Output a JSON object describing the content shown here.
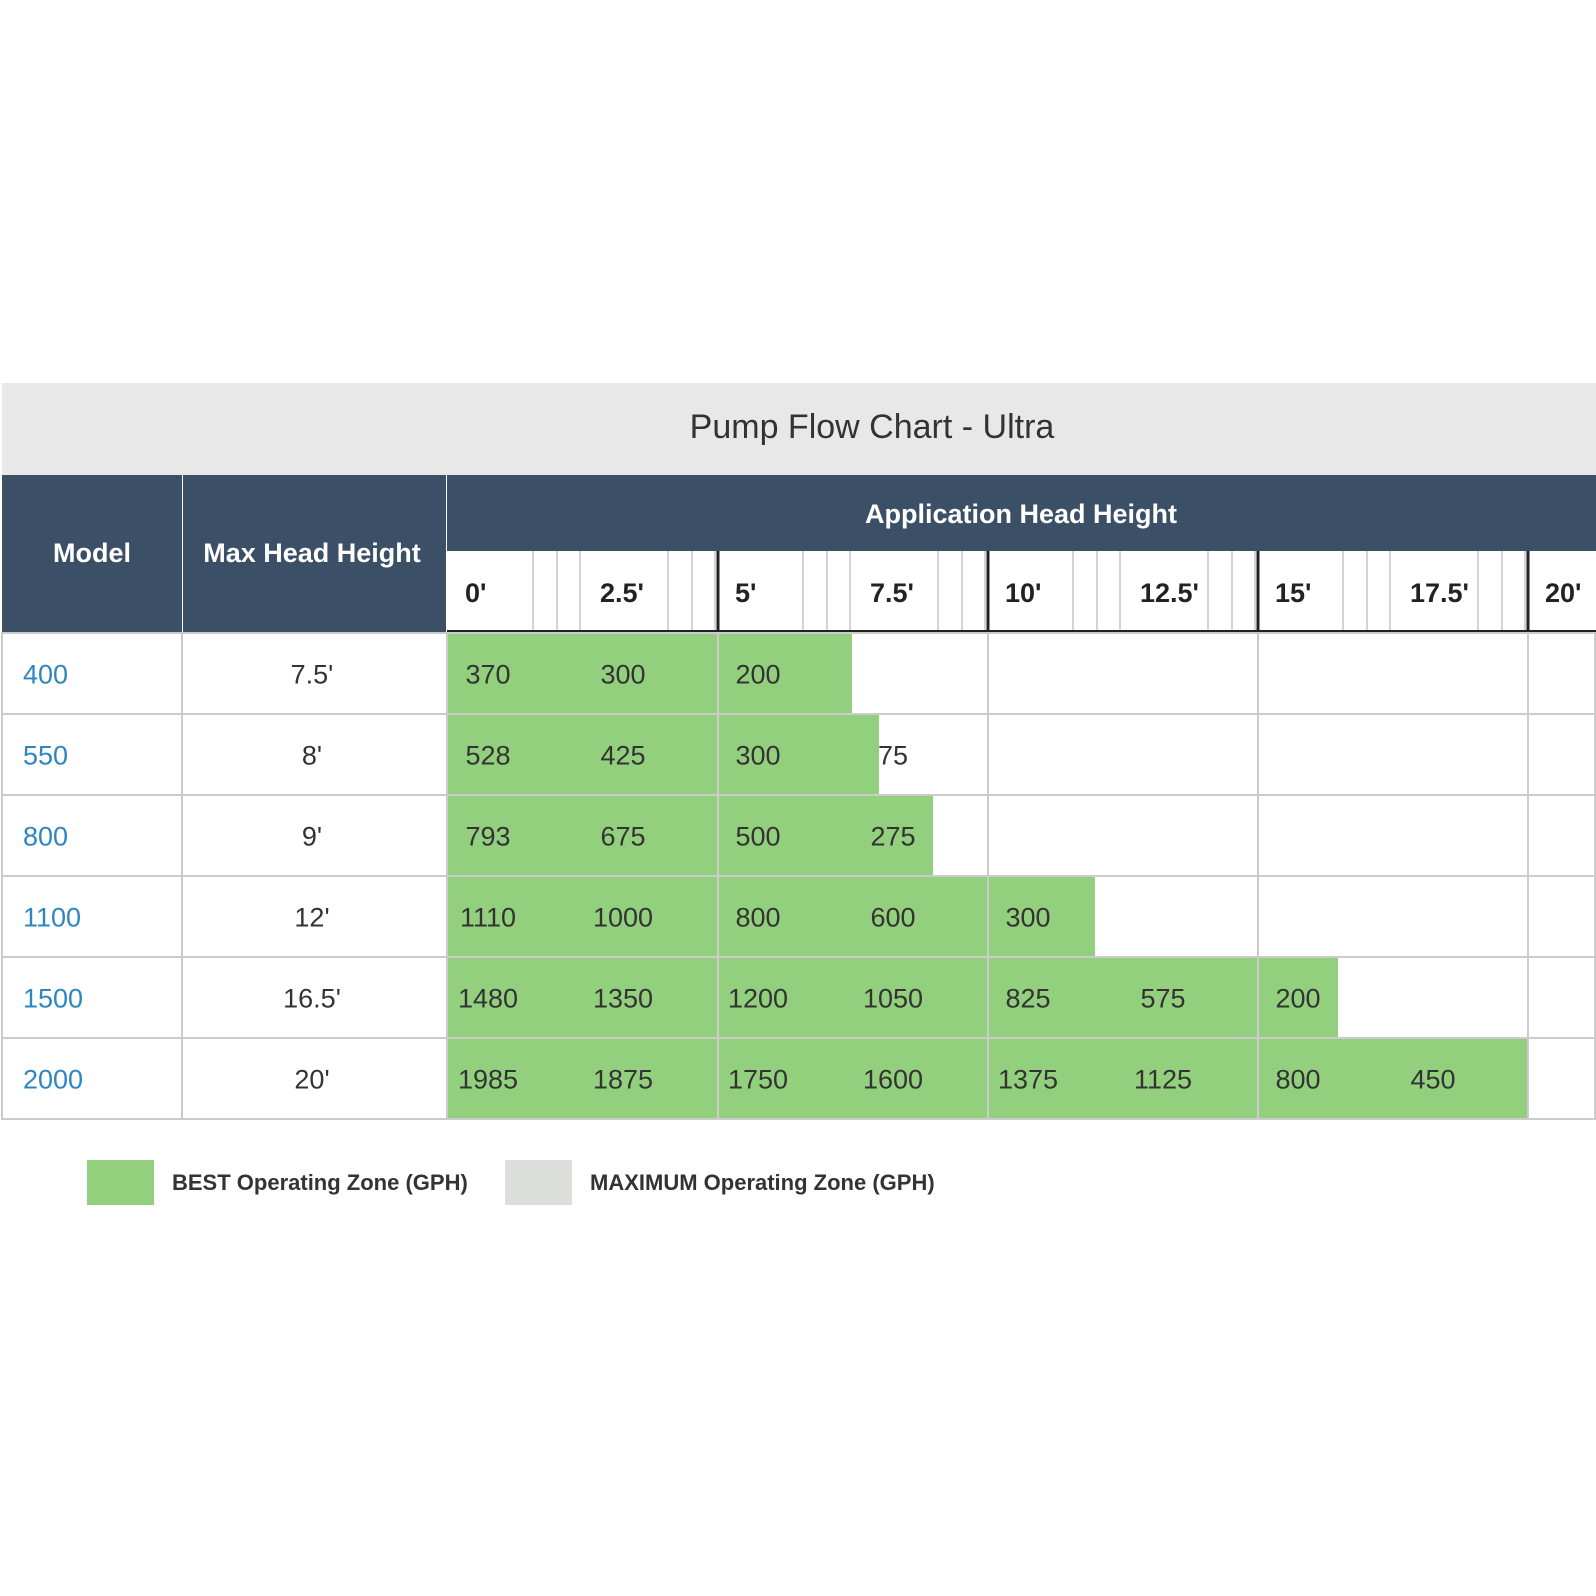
{
  "chart_data": {
    "type": "table",
    "title": "Pump Flow Chart - Ultra",
    "columns": {
      "model": "Model",
      "max_head": "Max Head Height",
      "group": "Application Head Height"
    },
    "head_heights": [
      "0'",
      "2.5'",
      "5'",
      "7.5'",
      "10'",
      "12.5'",
      "15'",
      "17.5'",
      "20'"
    ],
    "head_values": [
      0,
      2.5,
      5,
      7.5,
      10,
      12.5,
      15,
      17.5,
      20
    ],
    "rows": [
      {
        "model": "400",
        "max_head": "7.5'",
        "max_head_value": 7.5,
        "flows": [
          370,
          300,
          200
        ]
      },
      {
        "model": "550",
        "max_head": "8'",
        "max_head_value": 8,
        "flows": [
          528,
          425,
          300,
          75
        ]
      },
      {
        "model": "800",
        "max_head": "9'",
        "max_head_value": 9,
        "flows": [
          793,
          675,
          500,
          275
        ]
      },
      {
        "model": "1100",
        "max_head": "12'",
        "max_head_value": 12,
        "flows": [
          1110,
          1000,
          800,
          600,
          300
        ]
      },
      {
        "model": "1500",
        "max_head": "16.5'",
        "max_head_value": 16.5,
        "flows": [
          1480,
          1350,
          1200,
          1050,
          825,
          575,
          200
        ]
      },
      {
        "model": "2000",
        "max_head": "20'",
        "max_head_value": 20,
        "flows": [
          1985,
          1875,
          1750,
          1600,
          1375,
          1125,
          800,
          450
        ]
      }
    ],
    "legend": [
      {
        "label": "BEST Operating Zone (GPH)",
        "color": "#93d07e"
      },
      {
        "label": "MAXIMUM Operating Zone (GPH)",
        "color": "#dcdedb"
      }
    ],
    "colors": {
      "header": "#3b5066",
      "title_band": "#e8e8e8",
      "best_zone": "#93d07e",
      "grid": "#cccccc",
      "model_text": "#2e86c1"
    }
  }
}
